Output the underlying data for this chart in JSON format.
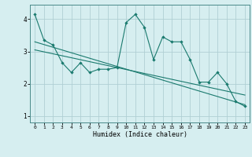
{
  "xlabel": "Humidex (Indice chaleur)",
  "ylabel": "",
  "bg_color": "#d6eef0",
  "line_color": "#1a7a6e",
  "grid_color": "#b0cfd4",
  "x_data": [
    0,
    1,
    2,
    3,
    4,
    5,
    6,
    7,
    8,
    9,
    10,
    11,
    12,
    13,
    14,
    15,
    16,
    17,
    18,
    19,
    20,
    21,
    22,
    23
  ],
  "y_main": [
    4.15,
    3.35,
    3.2,
    2.65,
    2.35,
    2.65,
    2.35,
    2.45,
    2.45,
    2.5,
    3.9,
    4.15,
    3.75,
    2.75,
    3.45,
    3.3,
    3.3,
    2.75,
    2.05,
    2.05,
    2.35,
    2.0,
    1.45,
    1.3
  ],
  "trend1_x": [
    0,
    23
  ],
  "trend1_y": [
    3.3,
    1.35
  ],
  "trend2_x": [
    0,
    23
  ],
  "trend2_y": [
    3.05,
    1.65
  ],
  "xlim": [
    -0.5,
    23.5
  ],
  "ylim": [
    0.8,
    4.45
  ],
  "yticks": [
    1,
    2,
    3,
    4
  ],
  "xticks": [
    0,
    1,
    2,
    3,
    4,
    5,
    6,
    7,
    8,
    9,
    10,
    11,
    12,
    13,
    14,
    15,
    16,
    17,
    18,
    19,
    20,
    21,
    22,
    23
  ]
}
